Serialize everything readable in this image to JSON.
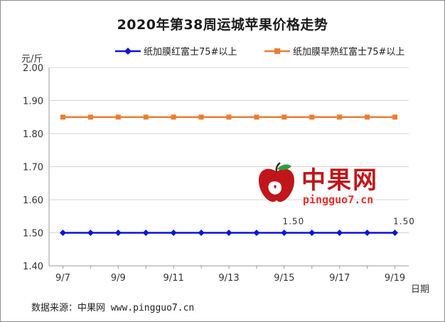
{
  "chart_data": {
    "type": "line",
    "title": "2020年第38周运城苹果价格走势",
    "ylabel": "元/斤",
    "xlabel": "日期",
    "ylim": [
      1.4,
      2.0
    ],
    "yticks": [
      "2.00",
      "1.90",
      "1.80",
      "1.70",
      "1.60",
      "1.50",
      "1.40"
    ],
    "ytick_values": [
      2.0,
      1.9,
      1.8,
      1.7,
      1.6,
      1.5,
      1.4
    ],
    "x": [
      "9/7",
      "9/8",
      "9/9",
      "9/10",
      "9/11",
      "9/12",
      "9/13",
      "9/14",
      "9/15",
      "9/16",
      "9/17",
      "9/18",
      "9/19"
    ],
    "xticks": [
      "9/7",
      "9/9",
      "9/11",
      "9/13",
      "9/15",
      "9/17",
      "9/19"
    ],
    "series": [
      {
        "name": "纸加膜红富士75#以上",
        "color": "#0a14d9",
        "marker": "diamond",
        "values": [
          1.5,
          1.5,
          1.5,
          1.5,
          1.5,
          1.5,
          1.5,
          1.5,
          1.5,
          1.5,
          1.5,
          1.5,
          1.5
        ],
        "labels": [
          null,
          null,
          null,
          null,
          null,
          null,
          null,
          null,
          "1.50",
          null,
          null,
          null,
          "1.50"
        ]
      },
      {
        "name": "纸加膜早熟红富士75#以上",
        "color": "#ed7d31",
        "marker": "square",
        "values": [
          1.85,
          1.85,
          1.85,
          1.85,
          1.85,
          1.85,
          1.85,
          1.85,
          1.85,
          1.85,
          1.85,
          1.85,
          1.85
        ],
        "labels": []
      }
    ],
    "grid": true,
    "legend": "top"
  },
  "source": "数据来源：中果网 www.pingguo7.cn",
  "watermark": {
    "name": "中果网",
    "url": "pingguo7.cn"
  }
}
